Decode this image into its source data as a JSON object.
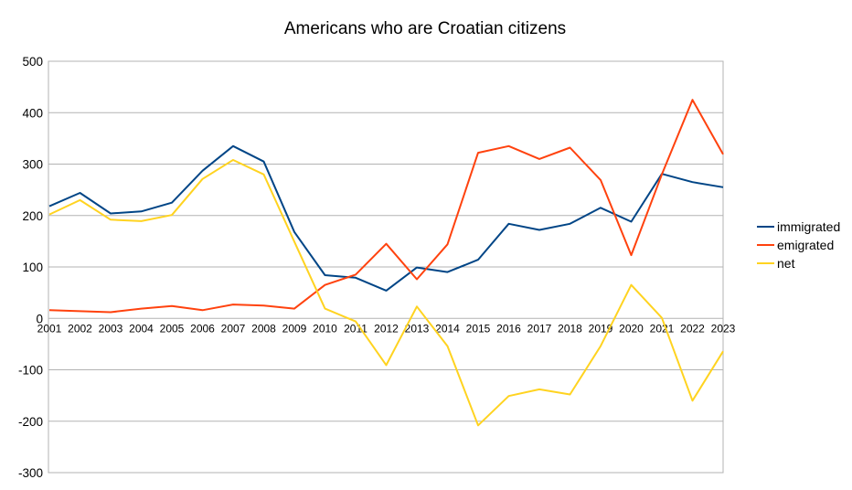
{
  "chart_data": {
    "type": "line",
    "title": "Americans who are Croatian citizens",
    "xlabel": "",
    "ylabel": "",
    "x": [
      "2001",
      "2002",
      "2003",
      "2004",
      "2005",
      "2006",
      "2007",
      "2008",
      "2009",
      "2010",
      "2011",
      "2012",
      "2013",
      "2014",
      "2015",
      "2016",
      "2017",
      "2018",
      "2019",
      "2020",
      "2021",
      "2022",
      "2023"
    ],
    "ylim": [
      -300,
      500
    ],
    "yticks": [
      -300,
      -200,
      -100,
      0,
      100,
      200,
      300,
      400,
      500
    ],
    "grid": true,
    "legend": "right",
    "series": [
      {
        "name": "immigrated",
        "color": "#004586",
        "values": [
          218,
          244,
          204,
          208,
          225,
          287,
          335,
          305,
          168,
          84,
          79,
          54,
          99,
          90,
          114,
          184,
          172,
          184,
          215,
          188,
          281,
          265,
          255
        ]
      },
      {
        "name": "emigrated",
        "color": "#ff420e",
        "values": [
          16,
          14,
          12,
          19,
          24,
          16,
          27,
          25,
          19,
          65,
          85,
          145,
          76,
          144,
          322,
          335,
          310,
          332,
          269,
          123,
          280,
          425,
          319
        ]
      },
      {
        "name": "net",
        "color": "#ffd320",
        "values": [
          202,
          230,
          192,
          189,
          201,
          271,
          308,
          280,
          149,
          19,
          -6,
          -91,
          23,
          -54,
          -208,
          -151,
          -138,
          -148,
          -54,
          65,
          1,
          -160,
          -64
        ]
      }
    ]
  }
}
